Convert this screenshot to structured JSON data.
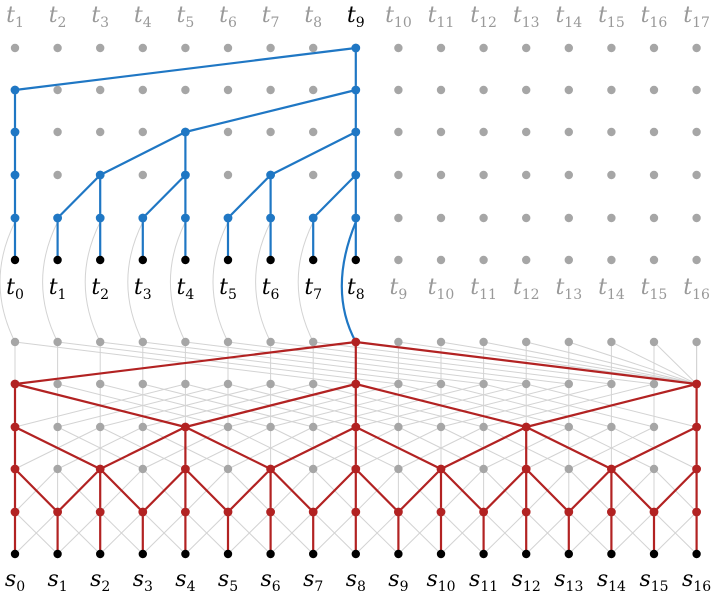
{
  "top_labels": [
    "t1",
    "t2",
    "t3",
    "t4",
    "t5",
    "t6",
    "t7",
    "t8",
    "t9",
    "t10",
    "t11",
    "t12",
    "t13",
    "t14",
    "t15",
    "t16",
    "t17"
  ],
  "top_label_active_index": 8,
  "mid_labels": [
    "t0",
    "t1",
    "t2",
    "t3",
    "t4",
    "t5",
    "t6",
    "t7",
    "t8",
    "t9",
    "t10",
    "t11",
    "t12",
    "t13",
    "t14",
    "t15",
    "t16"
  ],
  "mid_label_active_count": 9,
  "bottom_labels": [
    "s0",
    "s1",
    "s2",
    "s3",
    "s4",
    "s5",
    "s6",
    "s7",
    "s8",
    "s9",
    "s10",
    "s11",
    "s12",
    "s13",
    "s14",
    "s15",
    "s16"
  ],
  "colors": {
    "blue_tree": "#1f77c4",
    "red_tree": "#b22222",
    "grid_dot": "#a6a6a6",
    "grid_line": "#d3d3d3",
    "leaf_dot": "#000000",
    "inactive_label": "#999999",
    "active_label": "#000000"
  }
}
